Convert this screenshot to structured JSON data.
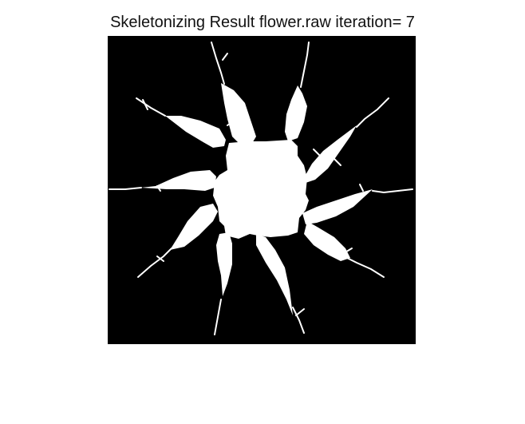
{
  "figure": {
    "title": "Skeletonizing Result flower.raw iteration= 7"
  },
  "image": {
    "description_colors": {
      "background": "#000000",
      "foreground": "#ffffff"
    }
  }
}
